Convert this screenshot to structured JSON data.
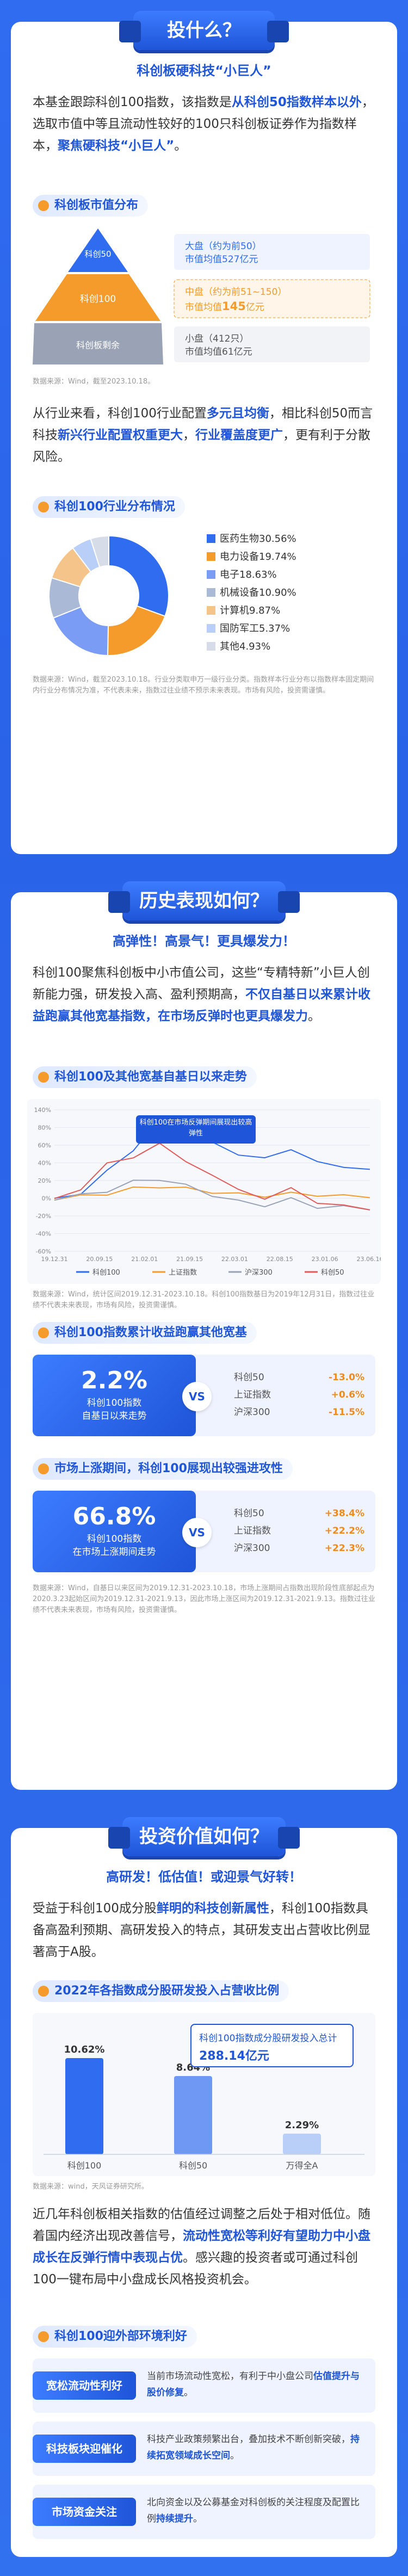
{
  "section1": {
    "ribbon": "投什么？",
    "subhead": "科创板硬科技“小巨人”",
    "intro": [
      "本基金跟踪科创100指数，该指数是",
      "从科创50指数样本以外",
      "，选取市值中等且流动性较好的100只科创板证券作为指数样本，",
      "聚焦硬科技“小巨人”",
      "。"
    ],
    "dist_title": "科创板市值分布",
    "pyramid": [
      {
        "label": "科创50",
        "text": "大盘（约为前50）",
        "sub": "市值均值527亿元"
      },
      {
        "label": "科创100",
        "text": "中盘（约为前51~150）",
        "sub": "市值均值",
        "highlight": "145",
        "unit": "亿元"
      },
      {
        "label": "科创板剩余",
        "text": "小盘（412只）",
        "sub": "市值均值61亿元"
      }
    ],
    "dist_src": "数据来源：Wind，截至2023.10.18。",
    "para2": [
      "从行业来看，科创100行业配置",
      "多元且均衡",
      "，相比科创50而言科技",
      "新兴行业配置权重更大",
      "，",
      "行业覆盖度更广",
      "，更有利于分散风险。"
    ],
    "industry_title": "科创100行业分布情况",
    "industries": [
      {
        "name": "医药生物",
        "pct": 30.56,
        "label": "30.56%",
        "color": "#2f6cf0"
      },
      {
        "name": "电力设备",
        "pct": 19.74,
        "label": "19.74%",
        "color": "#f59b2b"
      },
      {
        "name": "电子",
        "pct": 18.63,
        "label": "18.63%",
        "color": "#7a9cf5"
      },
      {
        "name": "机械设备",
        "pct": 10.9,
        "label": "10.90%",
        "color": "#aab9d6"
      },
      {
        "name": "计算机",
        "pct": 9.87,
        "label": "9.87%",
        "color": "#f5c48a"
      },
      {
        "name": "国防军工",
        "pct": 5.37,
        "label": "5.37%",
        "color": "#b9cff7"
      },
      {
        "name": "其他",
        "pct": 4.93,
        "label": "4.93%",
        "color": "#d7dde8"
      }
    ],
    "industry_src": "数据来源：Wind，截至2023.10.18。行业分类取申万一级行业分类。指数样本行业分布以指数样本固定期间内行业分布情况为准，不代表未来，指数过往业绩不预示未来表现。市场有风险，投资需谨慎。"
  },
  "section2": {
    "ribbon": "历史表现如何？",
    "subhead": "高弹性！高景气！更具爆发力！",
    "para": [
      "科创100聚焦科创板中小市值公司，这些“专精特新”小巨人创新能力强，研发投入高、盈利预期高，",
      "不仅自基日以来累计收益跑赢其他宽基指数，在市场反弹时也更具爆发力",
      "。"
    ],
    "chart1_title": "科创100及其他宽基自基日以来走势",
    "chart1_callout": "科创100在市场反弹期间展现出较高弹性",
    "chart1_ylabels": [
      "140%",
      "80%",
      "60%",
      "40%",
      "20%",
      "0%",
      "-20%",
      "-40%",
      "-60%"
    ],
    "chart1_xlabels": [
      "19.12.31",
      "20.09.15",
      "21.02.01",
      "21.09.15",
      "22.03.01",
      "22.08.15",
      "23.01.06",
      "23.06.16"
    ],
    "legend": [
      {
        "name": "科创100",
        "color": "#2f6cf0"
      },
      {
        "name": "上证指数",
        "color": "#f59b2b"
      },
      {
        "name": "沪深300",
        "color": "#9aa3b5"
      },
      {
        "name": "科创50",
        "color": "#e25a5a"
      }
    ],
    "chart1_src": "数据来源：Wind，统计区间2019.12.31-2023.10.18。科创100指数基日为2019年12月31日，指数过往业绩不代表未来表现，市场有风险，投资需谨慎。",
    "compare1_title": "科创100指数累计收益跑赢其他宽基",
    "compare1": {
      "big": "2.2%",
      "desc": "科创100指数\n自基日以来走势",
      "vs": "VS",
      "rows": [
        {
          "name": "科创50",
          "value": "-13.0%"
        },
        {
          "name": "上证指数",
          "value": "+0.6%"
        },
        {
          "name": "沪深300",
          "value": "-11.5%"
        }
      ]
    },
    "compare2_title": "市场上涨期间，科创100展现出较强进攻性",
    "compare2": {
      "big": "66.8%",
      "desc": "科创100指数\n在市场上涨期间走势",
      "vs": "VS",
      "rows": [
        {
          "name": "科创50",
          "value": "+38.4%"
        },
        {
          "name": "上证指数",
          "value": "+22.2%"
        },
        {
          "name": "沪深300",
          "value": "+22.3%"
        }
      ]
    },
    "compare_src": "数据来源：Wind，自基日以来区间为2019.12.31-2023.10.18，市场上涨期间占指数出现阶段性底部起点为2020.3.23起始区间为2019.12.31-2021.9.13，因此市场上涨区间为2019.12.31-2021.9.13。指数过往业绩不代表未来表现，市场有风险，投资需谨慎。"
  },
  "section3": {
    "ribbon": "投资价值如何？",
    "subhead": "高研发！低估值！或迎景气好转！",
    "para1": [
      "受益于科创100成分股",
      "鲜明的科技创新属性",
      "，科创100指数具备高盈利预期、高研发投入的特点，其研发支出占营收比例显著高于A股。"
    ],
    "rd_title": "2022年各指数成分股研发投入占营收比例",
    "rd_callout": "科创100指数成分股研发投入总计",
    "rd_total": "288.14亿元",
    "rd_bars": [
      {
        "name": "科创100",
        "value": 10.62,
        "label": "10.62%"
      },
      {
        "name": "科创50",
        "value": 8.64,
        "label": "8.64%"
      },
      {
        "name": "万得全A",
        "value": 2.29,
        "label": "2.29%"
      }
    ],
    "rd_src": "数据来源：wind，天风证券研究所。",
    "para2": [
      "近几年科创板相关指数的估值经过调整之后处于相对低位。随着国内经济出现改善信号，",
      "流动性宽松等利好有望助力中小盘成长在反弹行情中表现占优",
      "。感兴趣的投资者或可通过科创100一键布局中小盘成长风格投资机会。"
    ],
    "env_title": "科创100迎外部环境利好",
    "env": [
      {
        "tag": "宽松流动性利好",
        "text": "当前市场流动性宽松，有利于中小盘公司",
        "hl": "估值提升与股价修复",
        "tail": "。"
      },
      {
        "tag": "科技板块迎催化",
        "text": "科技产业政策频繁出台，叠加技术不断创新突破，",
        "hl": "持续拓宽领域成长空间",
        "tail": "。"
      },
      {
        "tag": "市场资金关注",
        "text": "北向资金以及公募基金对科创板的关注程度及配置比例",
        "hl": "持续提升",
        "tail": "。"
      }
    ]
  }
}
